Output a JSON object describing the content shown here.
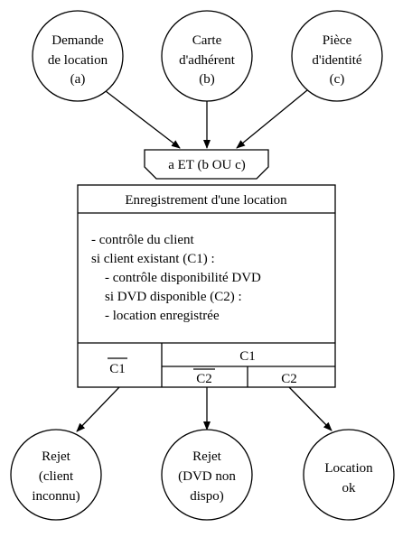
{
  "inputs": [
    {
      "lines": [
        "Demande",
        "de location",
        "(a)"
      ]
    },
    {
      "lines": [
        "Carte",
        "d'adhérent",
        "(b)"
      ]
    },
    {
      "lines": [
        "Pièce",
        "d'identité",
        "(c)"
      ]
    }
  ],
  "synchro": {
    "condition": "a ET (b OU c)"
  },
  "operation": {
    "title": "Enregistrement d'une location",
    "body": [
      "- contrôle du client",
      "si client existant (C1) :",
      "- contrôle disponibilité DVD",
      "si DVD disponible (C2) :",
      "- location enregistrée"
    ]
  },
  "rules": {
    "not_c1": "C1",
    "c1": "C1",
    "not_c2": "C2",
    "c2": "C2"
  },
  "outputs": [
    {
      "lines": [
        "Rejet",
        "(client",
        "inconnu)"
      ]
    },
    {
      "lines": [
        "Rejet",
        "(DVD non",
        "dispo)"
      ]
    },
    {
      "lines": [
        "Location",
        "ok"
      ]
    }
  ]
}
